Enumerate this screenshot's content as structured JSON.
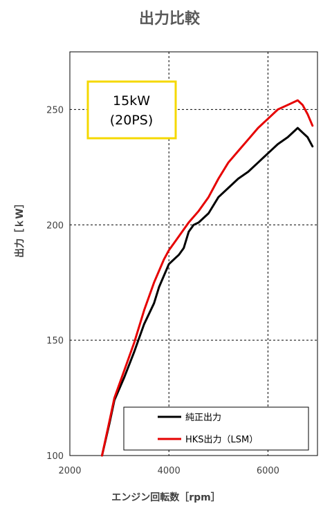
{
  "chart_data": {
    "type": "line",
    "title": "出力比較",
    "xlabel": "エンジン回転数［rpm］",
    "ylabel": "出力［ｋW］",
    "xlim": [
      2000,
      7000
    ],
    "ylim": [
      100,
      275
    ],
    "xticks": [
      2000,
      4000,
      6000
    ],
    "yticks": [
      100,
      150,
      200,
      250
    ],
    "grid": "dashed",
    "legend_position": "bottom-right",
    "annotation": {
      "line1": "15kW",
      "line2": "(20PS)",
      "border_color": "#f5d800"
    },
    "series": [
      {
        "name": "純正出力",
        "color": "#000000",
        "x": [
          2650,
          2800,
          2900,
          3100,
          3300,
          3500,
          3700,
          3800,
          4000,
          4200,
          4300,
          4400,
          4500,
          4600,
          4800,
          5000,
          5200,
          5400,
          5600,
          5800,
          6000,
          6200,
          6400,
          6600,
          6700,
          6800,
          6900
        ],
        "y": [
          100,
          114,
          124,
          134,
          145,
          157,
          166,
          173,
          183,
          187,
          190,
          197,
          200,
          201,
          205,
          212,
          216,
          220,
          223,
          227,
          231,
          235,
          238,
          242,
          240,
          238,
          234
        ]
      },
      {
        "name": "HKS出力（LSM）",
        "color": "#e60000",
        "x": [
          2650,
          2800,
          2900,
          3100,
          3300,
          3500,
          3700,
          3900,
          4000,
          4200,
          4400,
          4600,
          4800,
          5000,
          5200,
          5400,
          5600,
          5800,
          6000,
          6200,
          6400,
          6600,
          6700,
          6800,
          6900
        ],
        "y": [
          100,
          115,
          125,
          137,
          149,
          163,
          175,
          185,
          189,
          195,
          201,
          206,
          212,
          220,
          227,
          232,
          237,
          242,
          246,
          250,
          252,
          254,
          252,
          248,
          243
        ]
      }
    ]
  }
}
